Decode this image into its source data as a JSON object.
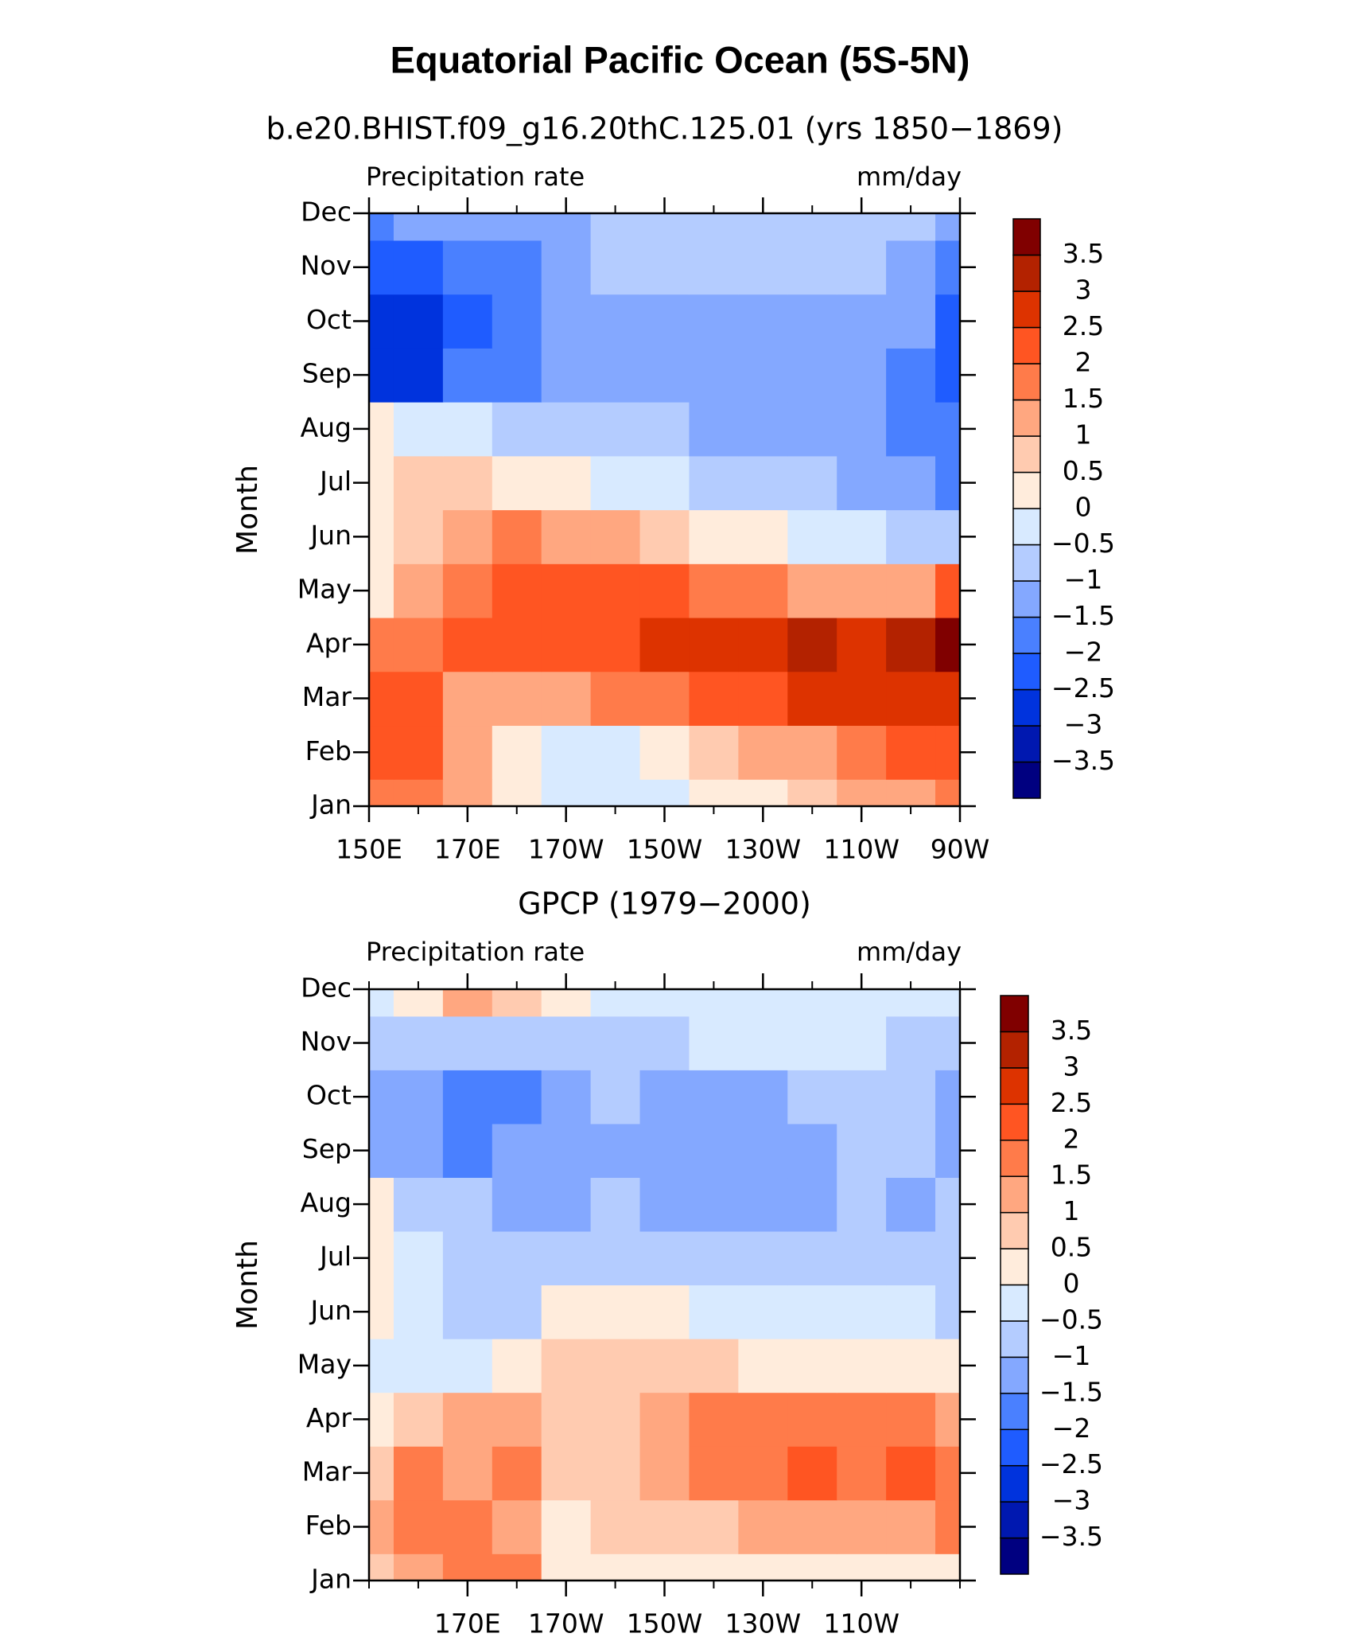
{
  "title": "Equatorial Pacific Ocean (5S-5N)",
  "chart_data": [
    {
      "type": "contour",
      "title": "b.e20.BHIST.f09_g16.20thC.125.01 (yrs 1850−1869)",
      "left_label": "Precipitation rate",
      "right_label": "mm/day",
      "y_label": "Month",
      "categories": [
        "Jan",
        "Feb",
        "Mar",
        "Apr",
        "May",
        "Jun",
        "Jul",
        "Aug",
        "Sep",
        "Oct",
        "Nov",
        "Dec"
      ],
      "x": [
        150,
        160,
        170,
        180,
        190,
        200,
        210,
        220,
        230,
        240,
        250,
        260,
        270
      ],
      "xlim": [
        150,
        270
      ],
      "xticks": [
        {
          "value": 150,
          "label": "150E"
        },
        {
          "value": 170,
          "label": "170E"
        },
        {
          "value": 190,
          "label": "170W"
        },
        {
          "value": 210,
          "label": "150W"
        },
        {
          "value": 230,
          "label": "130W"
        },
        {
          "value": 250,
          "label": "110W"
        },
        {
          "value": 270,
          "label": "90W"
        }
      ],
      "z": [
        [
          1.7,
          1.6,
          1.0,
          0.3,
          -0.2,
          -0.3,
          -0.2,
          0.1,
          0.4,
          0.7,
          1.0,
          1.3,
          1.6
        ],
        [
          2.2,
          2.1,
          1.3,
          0.4,
          -0.1,
          -0.2,
          0.2,
          0.6,
          1.0,
          1.3,
          1.7,
          2.0,
          2.3
        ],
        [
          2.3,
          2.0,
          1.4,
          1.2,
          1.3,
          1.5,
          1.8,
          2.0,
          2.3,
          2.6,
          2.7,
          2.8,
          2.9
        ],
        [
          1.6,
          1.8,
          2.1,
          2.1,
          2.2,
          2.4,
          2.5,
          2.6,
          2.8,
          3.0,
          2.7,
          3.1,
          3.6
        ],
        [
          0.2,
          1.4,
          1.8,
          2.0,
          2.1,
          2.2,
          2.0,
          1.8,
          1.6,
          1.4,
          1.2,
          1.0,
          2.0
        ],
        [
          0.3,
          0.6,
          1.0,
          1.5,
          1.4,
          1.0,
          0.6,
          0.3,
          0.1,
          -0.2,
          -0.4,
          -0.6,
          -0.8
        ],
        [
          0.4,
          0.7,
          0.5,
          0.3,
          0.1,
          -0.1,
          -0.4,
          -0.6,
          -0.7,
          -0.9,
          -1.1,
          -1.2,
          -1.8
        ],
        [
          0.2,
          -0.2,
          -0.4,
          -0.6,
          -0.7,
          -0.8,
          -1.0,
          -1.1,
          -1.2,
          -1.4,
          -1.5,
          -1.6,
          -2.0
        ],
        [
          -2.8,
          -2.7,
          -2.0,
          -1.6,
          -1.3,
          -1.2,
          -1.3,
          -1.3,
          -1.3,
          -1.4,
          -1.5,
          -1.6,
          -2.1
        ],
        [
          -3.0,
          -2.9,
          -2.5,
          -1.9,
          -1.5,
          -1.2,
          -1.2,
          -1.2,
          -1.2,
          -1.2,
          -1.3,
          -1.5,
          -2.1
        ],
        [
          -2.4,
          -2.3,
          -2.0,
          -1.7,
          -1.3,
          -1.0,
          -1.0,
          -0.9,
          -0.9,
          -0.9,
          -1.0,
          -1.2,
          -2.0
        ],
        [
          -1.6,
          -1.5,
          -1.4,
          -1.3,
          -1.2,
          -1.0,
          -0.9,
          -0.8,
          -0.8,
          -0.8,
          -0.8,
          -0.9,
          -1.5
        ]
      ],
      "levels": [
        {
          "value": -3.5,
          "label": "−3.5"
        },
        {
          "value": -3,
          "label": "−3"
        },
        {
          "value": -2.5,
          "label": "−2.5"
        },
        {
          "value": -2,
          "label": "−2"
        },
        {
          "value": -1.5,
          "label": "−1.5"
        },
        {
          "value": -1,
          "label": "−1"
        },
        {
          "value": -0.5,
          "label": "−0.5"
        },
        0,
        0.5,
        1,
        1.5,
        2,
        2.5,
        3,
        3.5
      ],
      "colors": [
        "#000080",
        "#0018b0",
        "#0033dd",
        "#1f5cff",
        "#4a80ff",
        "#84a8ff",
        "#b4ccff",
        "#d8eaff",
        "#ffecdc",
        "#ffcbb0",
        "#ffa780",
        "#ff7b4a",
        "#ff5522",
        "#dd3300",
        "#b32200",
        "#800000"
      ]
    },
    {
      "type": "contour",
      "title": "GPCP (1979−2000)",
      "left_label": "Precipitation rate",
      "right_label": "mm/day",
      "y_label": "Month",
      "categories": [
        "Jan",
        "Feb",
        "Mar",
        "Apr",
        "May",
        "Jun",
        "Jul",
        "Aug",
        "Sep",
        "Oct",
        "Nov",
        "Dec"
      ],
      "x": [
        150,
        160,
        170,
        180,
        190,
        200,
        210,
        220,
        230,
        240,
        250,
        260,
        270
      ],
      "xlim": [
        150,
        270
      ],
      "xticks": [
        {
          "value": 170,
          "label": "170E"
        },
        {
          "value": 190,
          "label": "170W"
        },
        {
          "value": 210,
          "label": "150W"
        },
        {
          "value": 230,
          "label": "130W"
        },
        {
          "value": 250,
          "label": "110W"
        }
      ],
      "z": [
        [
          0.8,
          1.4,
          1.5,
          1.8,
          0.4,
          0.2,
          0.2,
          0.2,
          0.1,
          0.1,
          0.1,
          0.1,
          0.3
        ],
        [
          1.2,
          1.6,
          1.5,
          1.4,
          0.4,
          0.5,
          0.8,
          0.9,
          1.0,
          1.1,
          1.2,
          1.3,
          1.5
        ],
        [
          0.8,
          1.5,
          1.2,
          1.6,
          0.6,
          0.8,
          1.3,
          1.6,
          1.9,
          2.1,
          1.7,
          2.0,
          1.8
        ],
        [
          0.3,
          0.8,
          1.2,
          1.0,
          0.9,
          0.8,
          1.4,
          1.6,
          1.7,
          1.8,
          1.6,
          1.8,
          1.3
        ],
        [
          -0.2,
          -0.3,
          -0.3,
          0.2,
          0.6,
          0.7,
          0.6,
          0.5,
          0.4,
          0.3,
          0.3,
          0.2,
          0.1
        ],
        [
          0.4,
          -0.3,
          -0.6,
          -0.7,
          0.1,
          0.2,
          0.1,
          -0.1,
          -0.3,
          -0.4,
          -0.5,
          -0.5,
          -0.6
        ],
        [
          0.3,
          -0.4,
          -0.9,
          -0.9,
          -0.6,
          -0.6,
          -0.8,
          -0.8,
          -0.8,
          -0.8,
          -0.8,
          -0.9,
          -0.8
        ],
        [
          0.2,
          -0.6,
          -1.0,
          -1.1,
          -1.1,
          -0.9,
          -1.2,
          -1.3,
          -1.3,
          -1.2,
          -0.9,
          -1.1,
          -0.9
        ],
        [
          -1.2,
          -1.3,
          -1.7,
          -1.5,
          -1.3,
          -1.2,
          -1.3,
          -1.4,
          -1.4,
          -1.3,
          -0.9,
          -1.0,
          -1.3
        ],
        [
          -1.1,
          -1.3,
          -1.6,
          -1.7,
          -1.2,
          -0.9,
          -1.2,
          -1.3,
          -1.2,
          -1.0,
          -0.8,
          -0.9,
          -1.3
        ],
        [
          -1.0,
          -0.9,
          -0.8,
          -0.8,
          -0.8,
          -0.7,
          -0.6,
          -0.5,
          -0.4,
          -0.5,
          -0.5,
          -0.6,
          -0.7
        ],
        [
          -0.2,
          0.4,
          1.2,
          0.6,
          0.2,
          -0.2,
          -0.3,
          -0.3,
          -0.3,
          -0.4,
          -0.4,
          -0.3,
          -0.3
        ]
      ],
      "levels": [
        {
          "value": -3.5,
          "label": "−3.5"
        },
        {
          "value": -3,
          "label": "−3"
        },
        {
          "value": -2.5,
          "label": "−2.5"
        },
        {
          "value": -2,
          "label": "−2"
        },
        {
          "value": -1.5,
          "label": "−1.5"
        },
        {
          "value": -1,
          "label": "−1"
        },
        {
          "value": -0.5,
          "label": "−0.5"
        },
        0,
        0.5,
        1,
        1.5,
        2,
        2.5,
        3,
        3.5
      ],
      "colors": [
        "#000080",
        "#0018b0",
        "#0033dd",
        "#1f5cff",
        "#4a80ff",
        "#84a8ff",
        "#b4ccff",
        "#d8eaff",
        "#ffecdc",
        "#ffcbb0",
        "#ffa780",
        "#ff7b4a",
        "#ff5522",
        "#dd3300",
        "#b32200",
        "#800000"
      ]
    }
  ]
}
